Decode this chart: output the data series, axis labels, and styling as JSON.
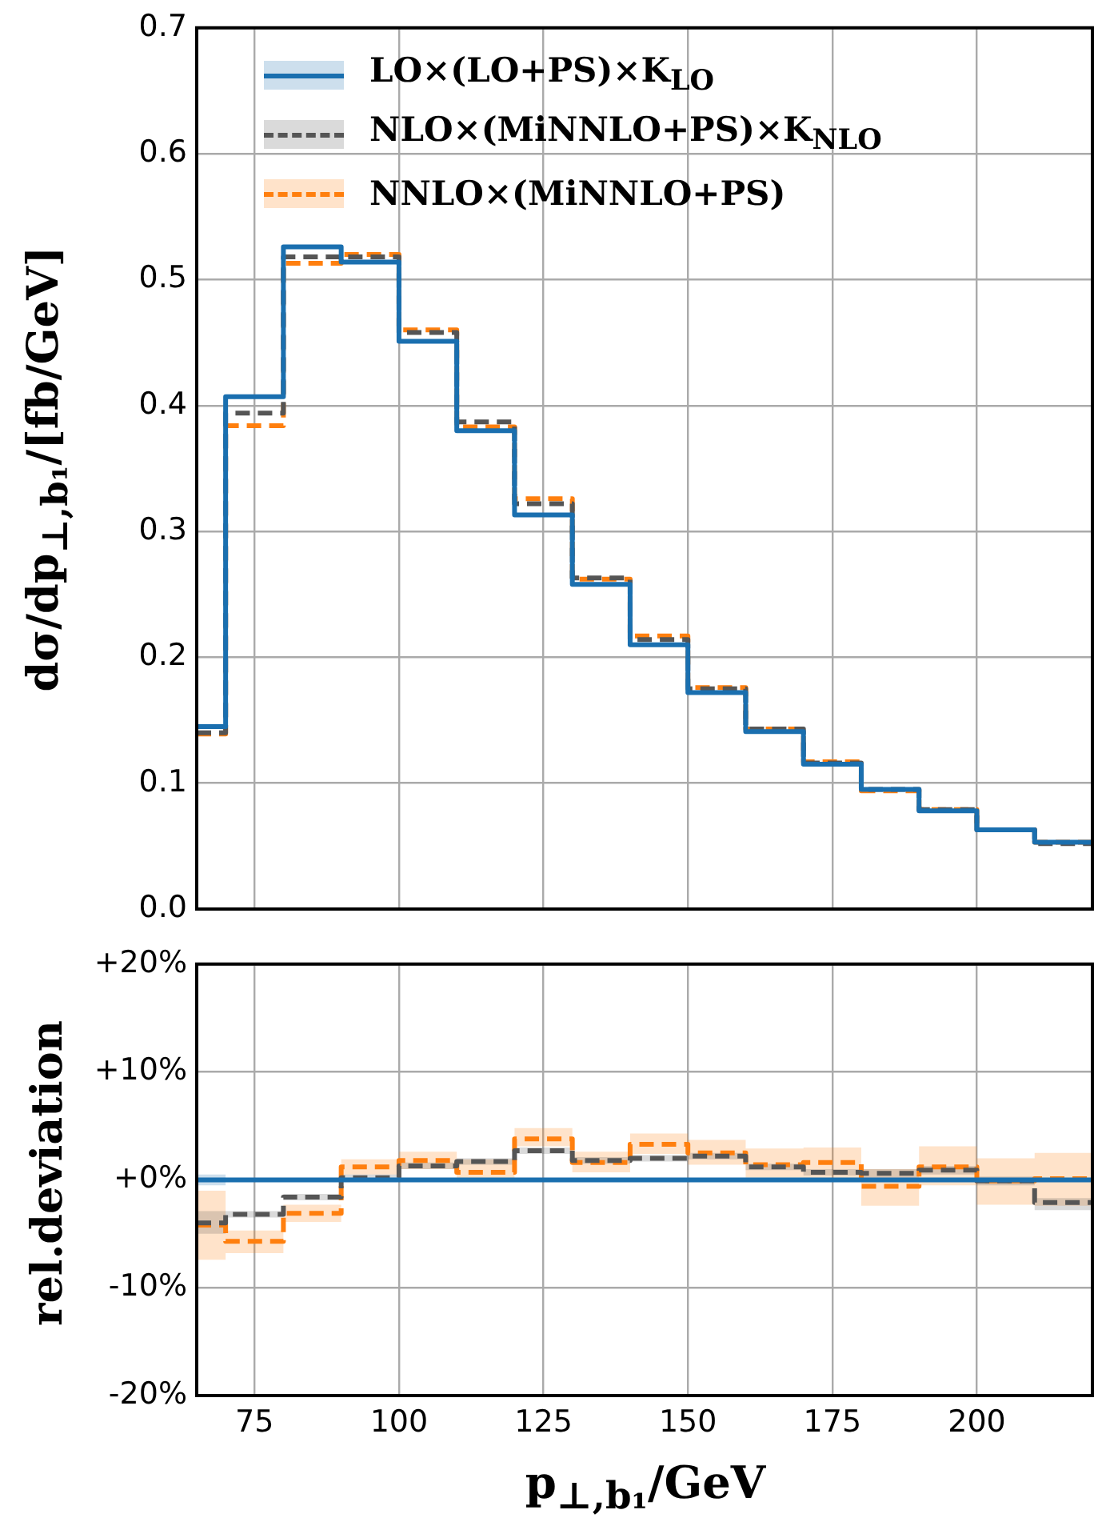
{
  "chart_data": [
    {
      "type": "histogram",
      "bins": [
        65,
        70,
        80,
        90,
        100,
        110,
        120,
        130,
        140,
        150,
        160,
        170,
        180,
        190,
        200,
        210,
        220
      ],
      "series": [
        {
          "name": "LO×(LO+PS)×K$_{LO}$",
          "color": "#1a6faf",
          "line_style": "solid",
          "values": [
            0.145,
            0.407,
            0.526,
            0.514,
            0.451,
            0.38,
            0.313,
            0.258,
            0.21,
            0.172,
            0.141,
            0.115,
            0.095,
            0.078,
            0.063,
            0.053
          ]
        },
        {
          "name": "NLO×(MiNNLO+PS)×K$_{NLO}$",
          "color": "#555555",
          "line_style": "dashed",
          "values": [
            0.14,
            0.394,
            0.518,
            0.518,
            0.458,
            0.387,
            0.322,
            0.263,
            0.214,
            0.175,
            0.143,
            0.116,
            0.095,
            0.079,
            0.063,
            0.052
          ]
        },
        {
          "name": "NNLO×(MiNNLO+PS)",
          "color": "#ff7f0e",
          "line_style": "dashed",
          "values": [
            0.139,
            0.384,
            0.513,
            0.52,
            0.46,
            0.383,
            0.326,
            0.262,
            0.217,
            0.176,
            0.143,
            0.117,
            0.094,
            0.079,
            0.063,
            0.053
          ]
        }
      ],
      "xlim": [
        65,
        220
      ],
      "xticks": [
        75,
        100,
        125,
        150,
        175,
        200
      ],
      "ylim": [
        0,
        0.7
      ],
      "yticks": [
        {
          "value": 0,
          "label": "0.0"
        },
        0.1,
        0.2,
        0.3,
        0.4,
        0.5,
        0.6,
        0.7
      ],
      "ylabel": "dσ/dp$_{⊥,b₁}$/[fb/GeV]",
      "grid": true,
      "legend": "top left",
      "tick_labels": "y"
    },
    {
      "type": "step",
      "x": [
        65,
        70,
        80,
        90,
        100,
        110,
        120,
        130,
        140,
        150,
        160,
        170,
        180,
        190,
        200,
        210,
        220
      ],
      "series": [
        {
          "color": "#1a6faf",
          "line_style": "solid",
          "values": [
            0,
            0,
            0,
            0,
            0,
            0,
            0,
            0,
            0,
            0,
            0,
            0,
            0,
            0,
            0,
            0,
            0
          ],
          "lower": [
            -0.5,
            -0.1,
            -0.1,
            -0.1,
            -0.1,
            -0.1,
            -0.1,
            -0.1,
            -0.1,
            -0.1,
            -0.1,
            -0.1,
            -0.1,
            -0.1,
            -0.1,
            -0.1,
            -0.1
          ],
          "upper": [
            0.5,
            0.1,
            0.1,
            0.1,
            0.1,
            0.1,
            0.1,
            0.1,
            0.1,
            0.1,
            0.1,
            0.1,
            0.1,
            0.1,
            0.1,
            0.1,
            0.1
          ]
        },
        {
          "color": "#555555",
          "line_style": "dashed",
          "values": [
            -4.0,
            -3.2,
            -1.6,
            0.2,
            1.3,
            1.7,
            2.7,
            1.8,
            2.0,
            2.2,
            1.2,
            0.7,
            0.6,
            0.9,
            -0.1,
            -2.1,
            -2.1
          ],
          "lower": [
            -5.0,
            -3.5,
            -1.9,
            -0.1,
            1.0,
            1.4,
            2.4,
            1.5,
            1.7,
            1.9,
            0.9,
            0.4,
            0.2,
            0.5,
            -0.5,
            -2.8,
            -2.8
          ],
          "upper": [
            -2.9,
            -2.9,
            -1.3,
            0.5,
            1.6,
            2.0,
            3.0,
            2.1,
            2.3,
            2.5,
            1.5,
            1.0,
            1.0,
            1.3,
            0.3,
            -1.7,
            -1.7
          ]
        },
        {
          "color": "#ff7f0e",
          "line_style": "dashed",
          "values": [
            -4.2,
            -5.7,
            -3.1,
            1.2,
            1.8,
            0.7,
            3.8,
            1.6,
            3.3,
            2.5,
            1.4,
            1.6,
            -0.6,
            1.2,
            -0.1,
            0.1,
            0.1
          ],
          "lower": [
            -7.4,
            -6.8,
            -3.9,
            0.5,
            1.0,
            -0.2,
            3.1,
            0.7,
            2.4,
            1.4,
            0.2,
            0.0,
            -2.4,
            -0.5,
            -2.3,
            -2.4,
            -2.4
          ],
          "upper": [
            -1.0,
            -4.7,
            -2.3,
            1.9,
            2.6,
            1.9,
            4.8,
            2.6,
            4.3,
            3.7,
            2.9,
            3.0,
            1.0,
            3.1,
            2.0,
            2.5,
            2.5
          ]
        }
      ],
      "xlim": [
        65,
        220
      ],
      "xticks": [
        75,
        100,
        125,
        150,
        175,
        200
      ],
      "ylim": [
        -20,
        20
      ],
      "yticks": [
        {
          "value": -20,
          "label": "-20%"
        },
        {
          "value": -10,
          "label": "-10%"
        },
        {
          "value": 0,
          "label": "+0%"
        },
        {
          "value": 10,
          "label": "+10%"
        },
        {
          "value": 20,
          "label": "+20%"
        }
      ],
      "xlabel": "p$_{⊥,b₁}$/GeV",
      "ylabel": "rel.deviation",
      "grid": true
    }
  ]
}
